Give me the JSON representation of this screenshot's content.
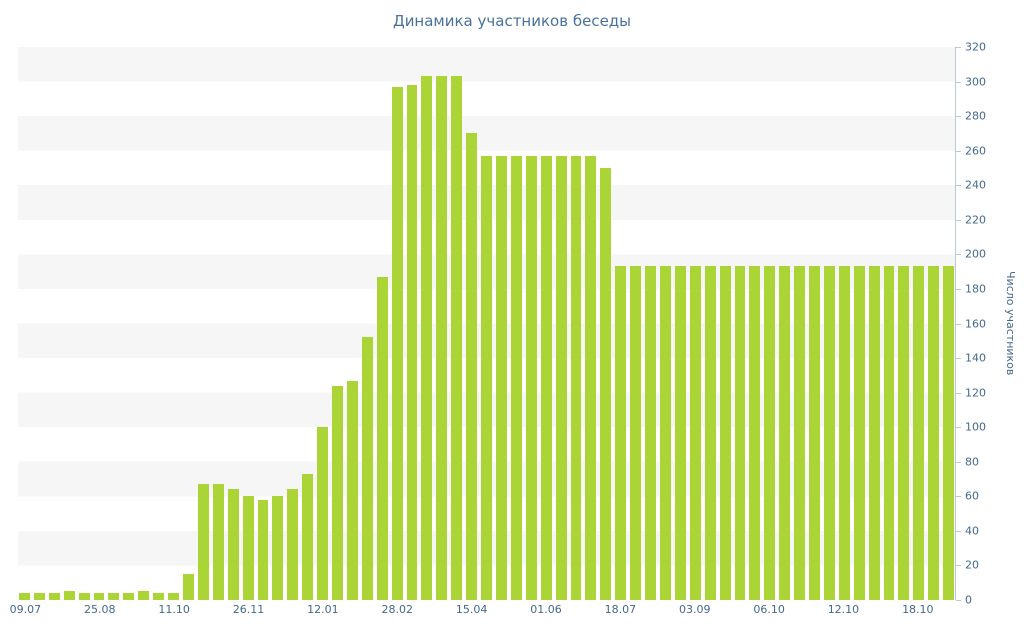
{
  "title": "Динамика участников беседы",
  "y_axis_label": "Число участников",
  "colors": {
    "bar": "#abd437",
    "title_text": "#49719c",
    "axis_text": "#45688e",
    "axis_line": "#b9c9da",
    "stripe": "#f6f6f6",
    "background": "#ffffff"
  },
  "chart_data": {
    "type": "bar",
    "title": "Динамика участников беседы",
    "ylabel": "Число участников",
    "xlabel": "",
    "ylim": [
      0,
      320
    ],
    "y_tick_step": 20,
    "y_ticks": [
      0,
      20,
      40,
      60,
      80,
      100,
      120,
      140,
      160,
      180,
      200,
      220,
      240,
      260,
      280,
      300,
      320
    ],
    "x_tick_labels": [
      "09.07",
      "25.08",
      "11.10",
      "26.11",
      "12.01",
      "28.02",
      "15.04",
      "01.06",
      "18.07",
      "03.09",
      "06.10",
      "12.10",
      "18.10"
    ],
    "x_label_every": 5,
    "legend": "none",
    "grid": "horizontal-stripes",
    "values": [
      4,
      4,
      4,
      5,
      4,
      4,
      4,
      4,
      5,
      4,
      4,
      15,
      67,
      67,
      64,
      60,
      58,
      60,
      64,
      73,
      100,
      124,
      127,
      152,
      187,
      297,
      298,
      303,
      303,
      303,
      270,
      257,
      257,
      257,
      257,
      257,
      257,
      257,
      257,
      250,
      193,
      193,
      193,
      193,
      193,
      193,
      193,
      193,
      193,
      193,
      193,
      193,
      193,
      193,
      193,
      193,
      193,
      193,
      193,
      193,
      193,
      193,
      193
    ]
  }
}
